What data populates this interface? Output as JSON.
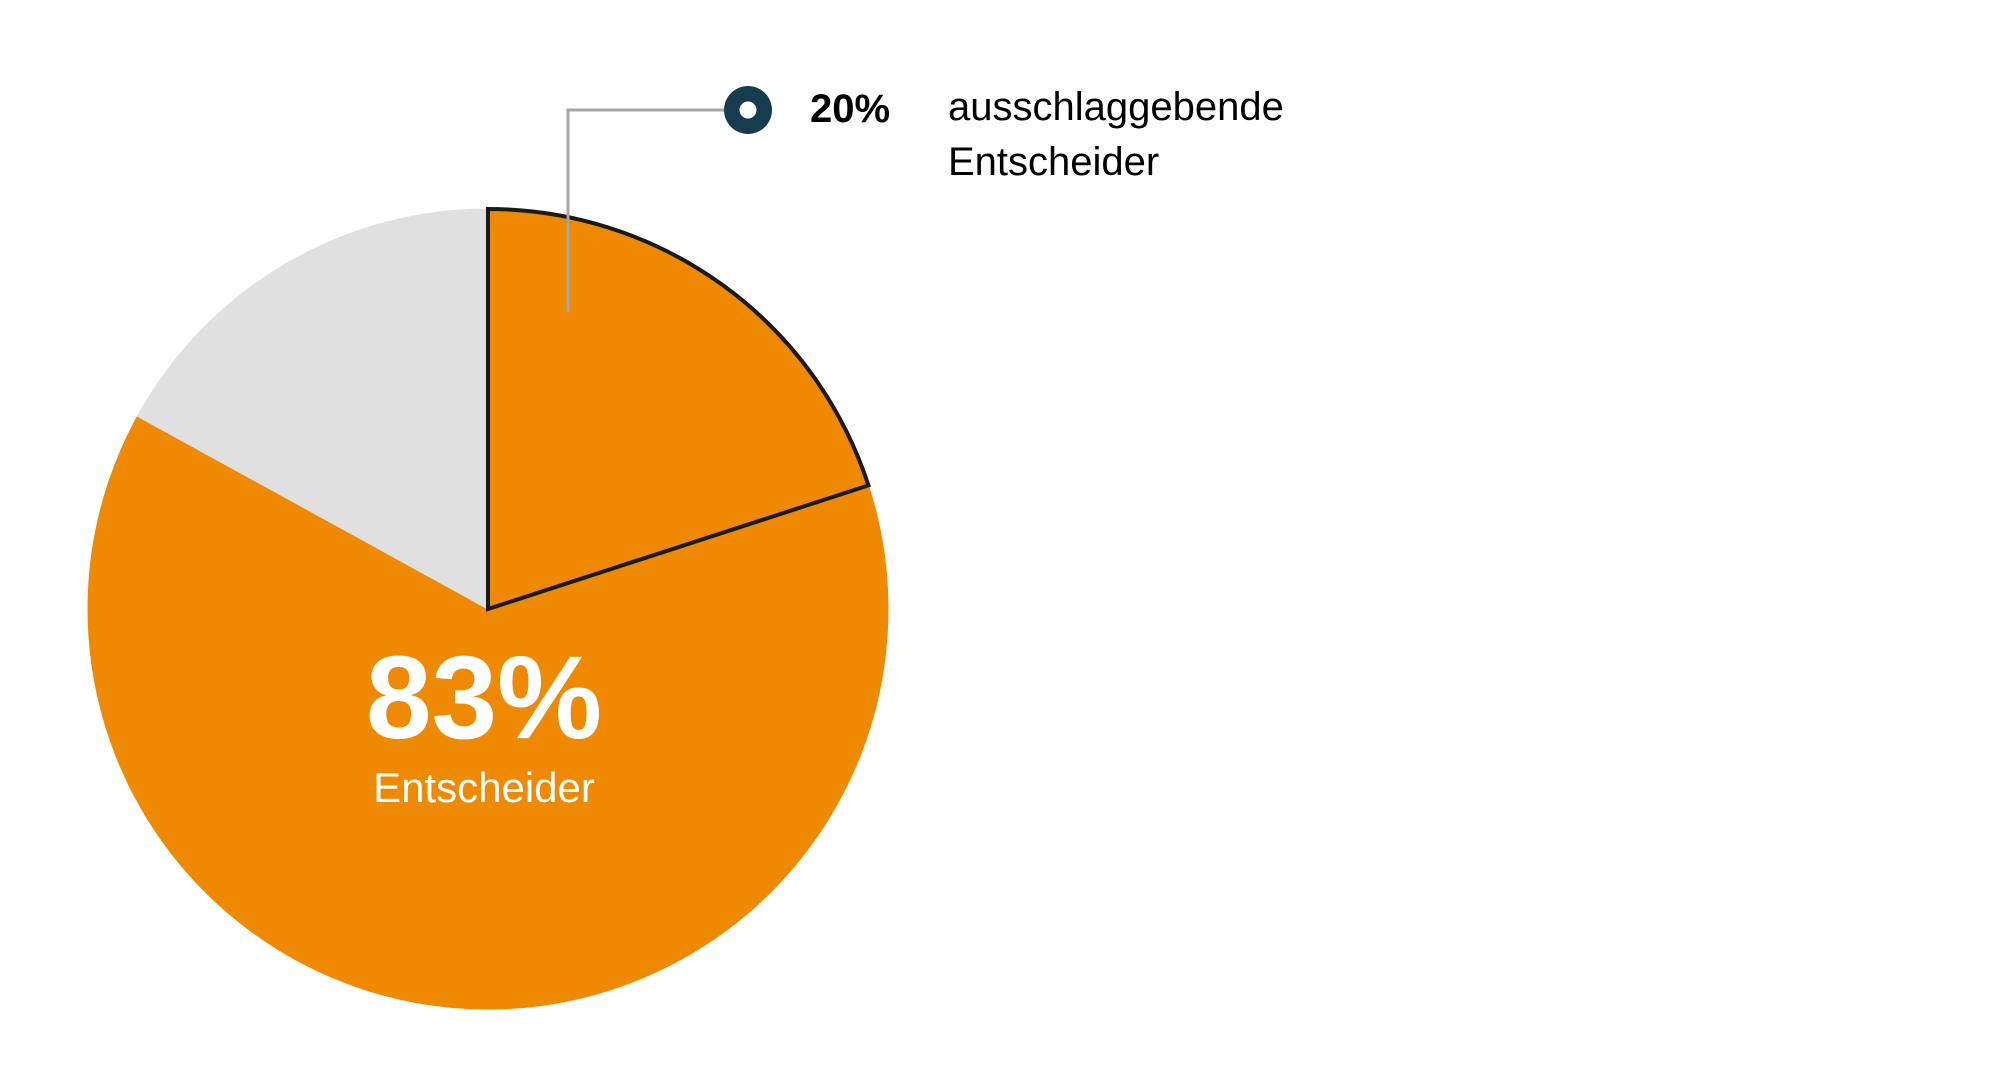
{
  "chart_data": {
    "type": "pie",
    "slices": [
      {
        "label": "ausschlaggebende Entscheider",
        "value": 20,
        "color": "#ef8a00",
        "highlight": true
      },
      {
        "label": "Entscheider",
        "value": 63,
        "color": "#ef8a00",
        "highlight": false
      },
      {
        "label": "",
        "value": 17,
        "color": "#e0e0e0",
        "highlight": false
      }
    ],
    "center_label": {
      "value": "83%",
      "text": "Entscheider"
    },
    "callout": {
      "value": "20%",
      "line1": "ausschlaggebende",
      "line2": "Entscheider",
      "marker_color": "#173c4e",
      "leader_color": "#a6a6a6"
    },
    "colors": {
      "orange": "#ef8a00",
      "grey": "#e0e0e0",
      "outline": "#1a1a1a"
    }
  }
}
